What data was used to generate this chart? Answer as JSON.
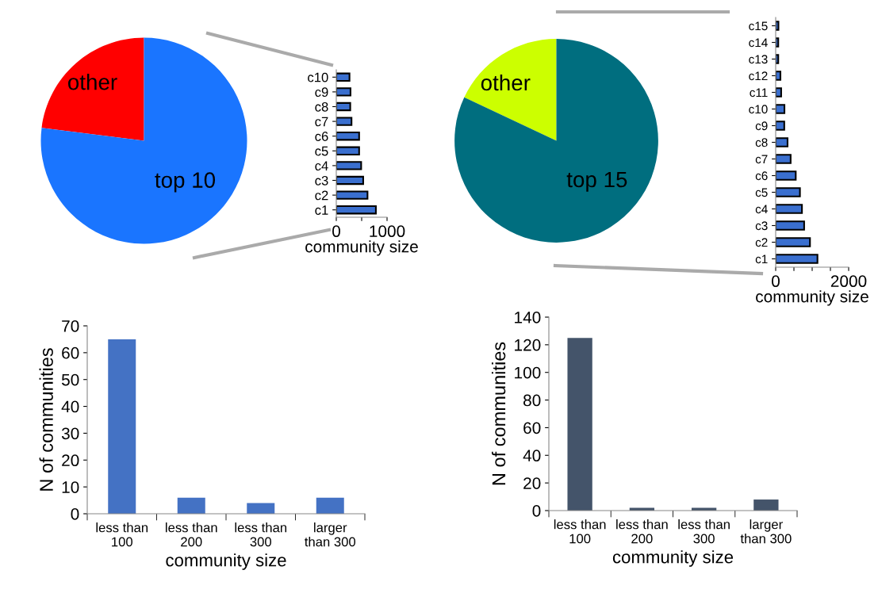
{
  "chart_data": [
    {
      "type": "pie",
      "categories": [
        "other",
        "top 10"
      ],
      "values": [
        23,
        77
      ],
      "colors": [
        "#ff0000",
        "#1a75ff"
      ]
    },
    {
      "type": "bar",
      "orientation": "horizontal",
      "categories": [
        "c10",
        "c9",
        "c8",
        "c7",
        "c6",
        "c5",
        "c4",
        "c3",
        "c2",
        "c1"
      ],
      "values": [
        260,
        280,
        275,
        300,
        450,
        450,
        490,
        530,
        615,
        780
      ],
      "color": "#3a6fcf",
      "xlim": [
        0,
        1000
      ],
      "xticks": [
        0,
        {
          "value": 500,
          "label": null
        },
        1000
      ],
      "xlabel": "community size"
    },
    {
      "type": "pie",
      "categories": [
        "other",
        "top 15"
      ],
      "values": [
        18,
        82
      ],
      "colors": [
        "#ccff00",
        "#006e7f"
      ]
    },
    {
      "type": "bar",
      "orientation": "horizontal",
      "categories": [
        "c15",
        "c14",
        "c13",
        "c12",
        "c11",
        "c10",
        "c9",
        "c8",
        "c7",
        "c6",
        "c5",
        "c4",
        "c3",
        "c2",
        "c1"
      ],
      "values": [
        75,
        70,
        70,
        130,
        150,
        240,
        235,
        325,
        410,
        550,
        665,
        720,
        780,
        940,
        1145
      ],
      "color": "#3a6fcf",
      "xlim": [
        0,
        2000
      ],
      "xticks": [
        0,
        {
          "value": 500,
          "label": null
        },
        {
          "value": 1000,
          "label": null
        },
        {
          "value": 1500,
          "label": null
        },
        2000
      ],
      "xlabel": "community size"
    },
    {
      "type": "bar",
      "categories": [
        "less than\n100",
        "less than\n200",
        "less than\n300",
        "larger\nthan 300"
      ],
      "values": [
        65,
        6,
        4,
        6
      ],
      "color": "#4472c4",
      "ylim": [
        0,
        70
      ],
      "yticks": [
        0,
        10,
        20,
        30,
        40,
        50,
        60,
        70
      ],
      "xlabel": "community size",
      "ylabel": "N of communities"
    },
    {
      "type": "bar",
      "categories": [
        "less than\n100",
        "less than\n200",
        "less than\n300",
        "larger\nthan 300"
      ],
      "values": [
        125,
        2,
        2,
        8
      ],
      "color": "#44546a",
      "ylim": [
        0,
        140
      ],
      "yticks": [
        0,
        20,
        40,
        60,
        80,
        100,
        120,
        140
      ],
      "xlabel": "community size",
      "ylabel": "N of communities"
    }
  ]
}
